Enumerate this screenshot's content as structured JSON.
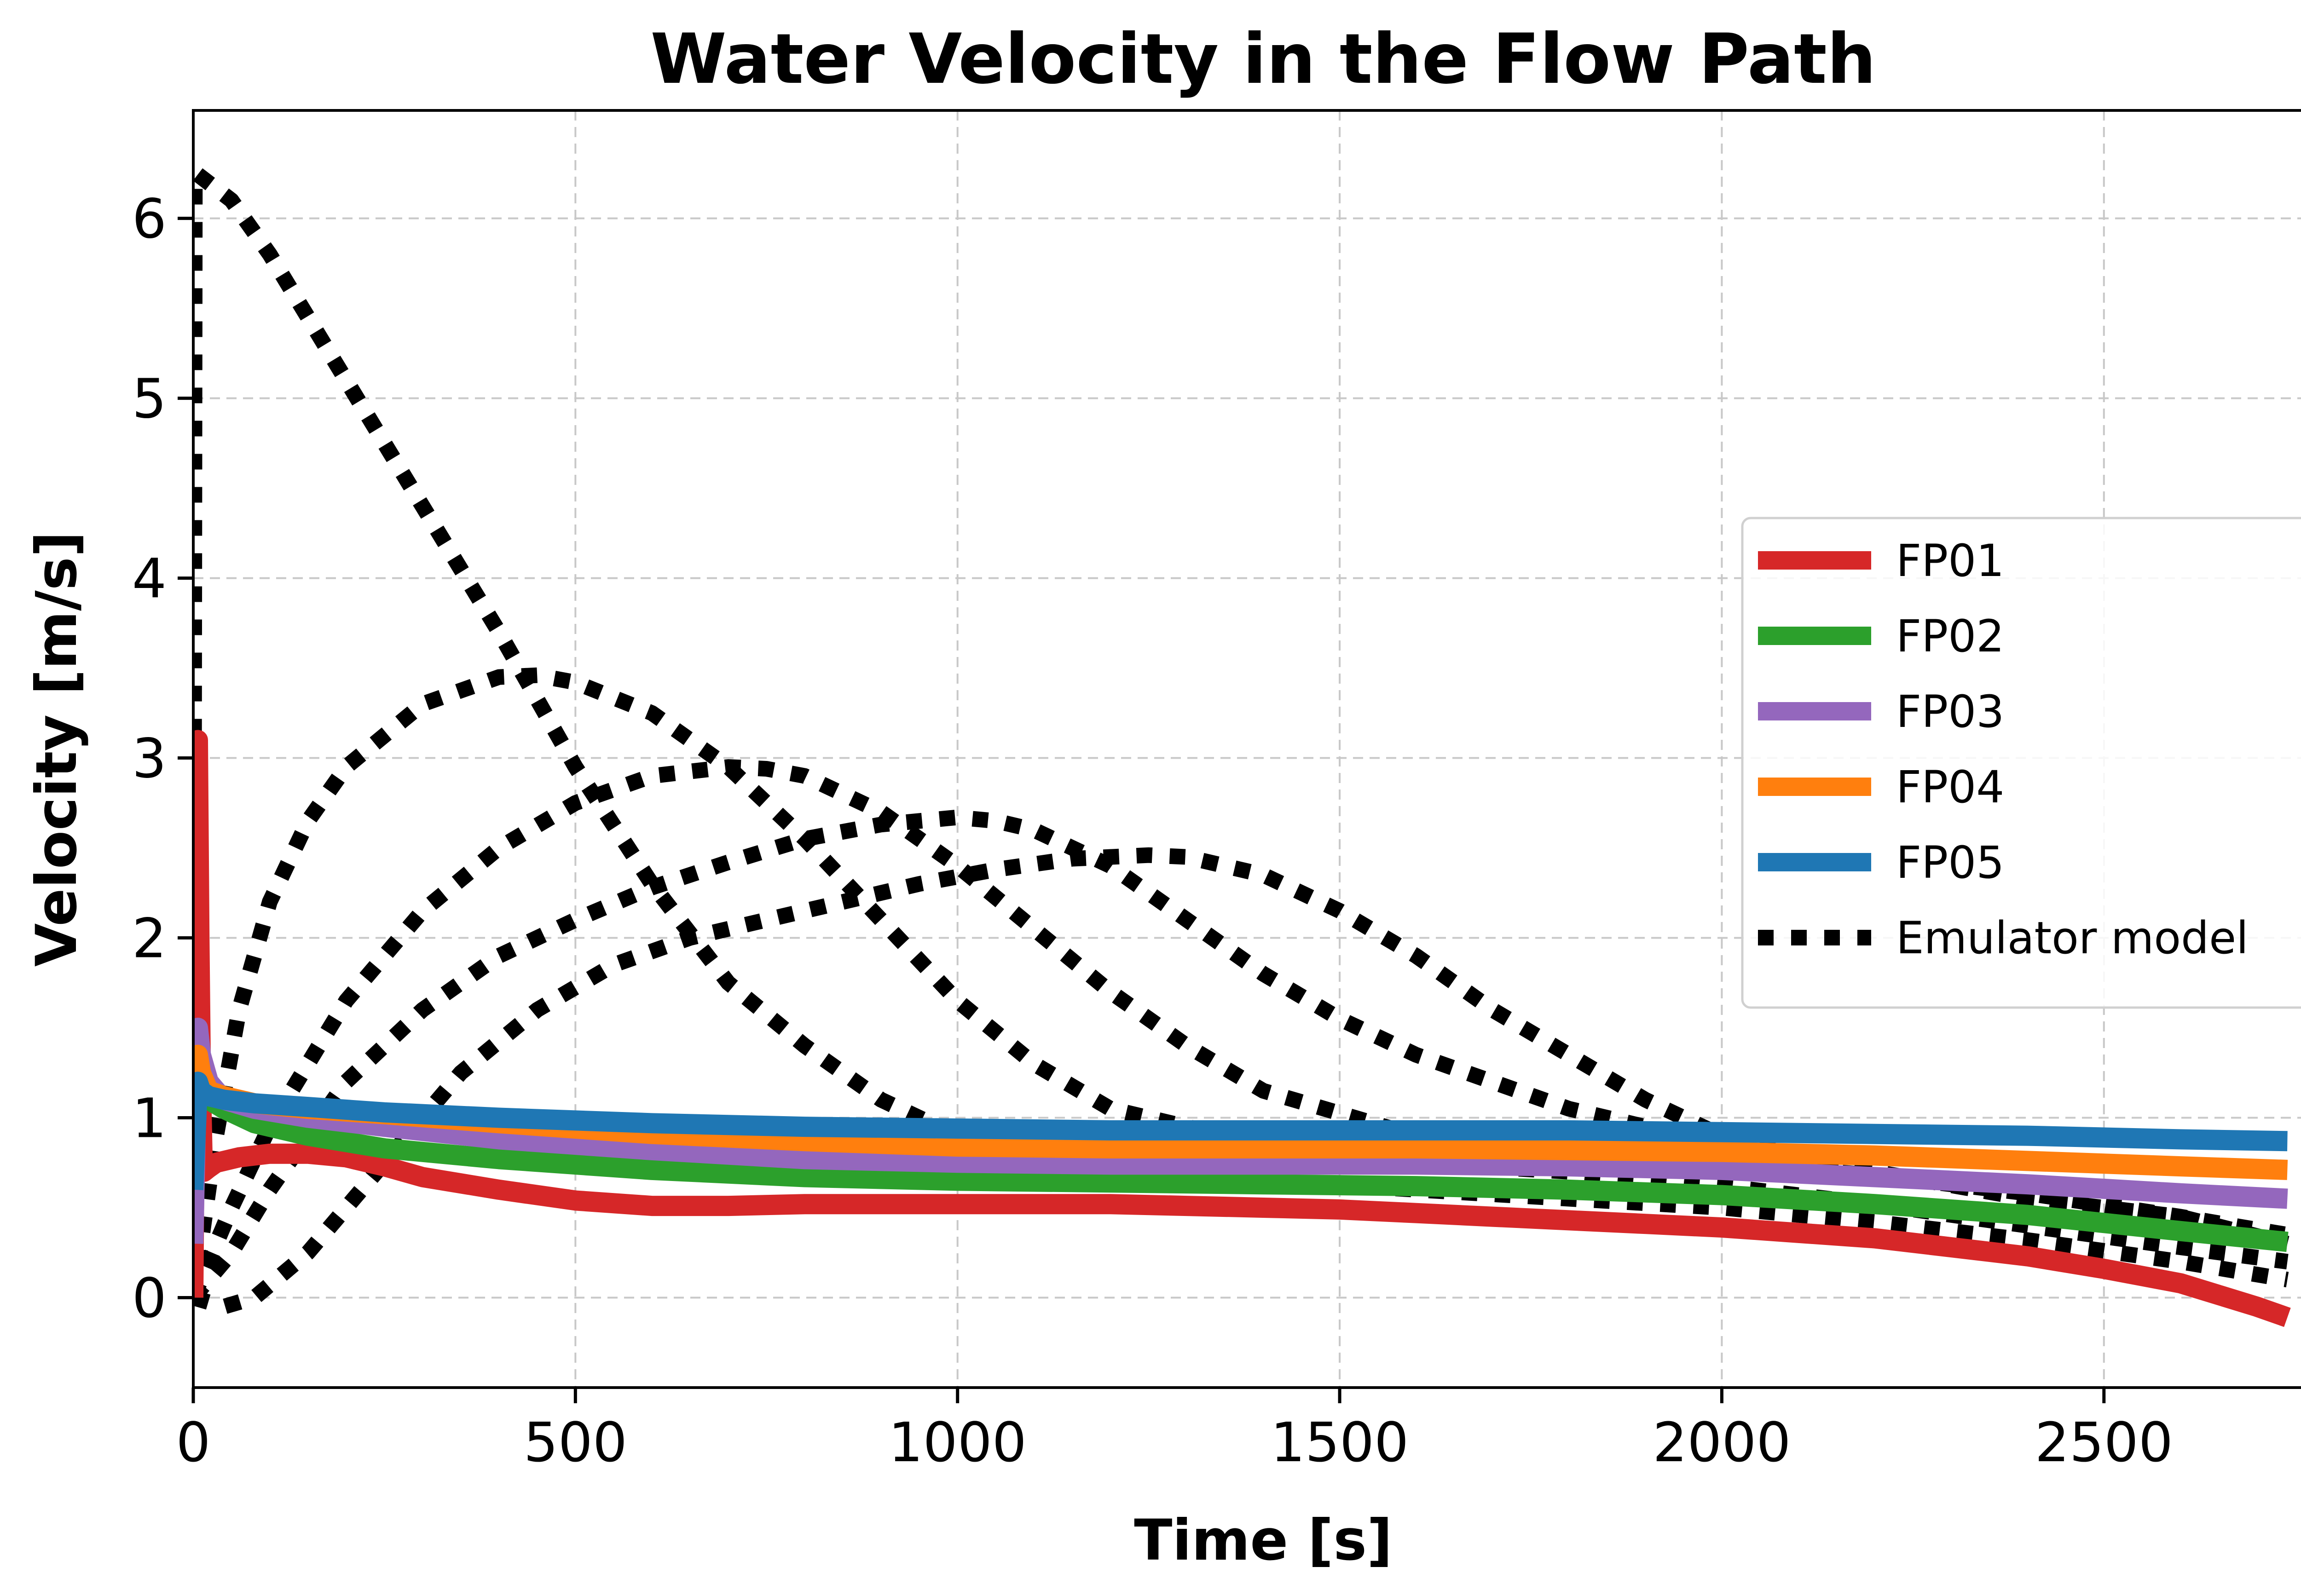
{
  "chart_data": {
    "type": "line",
    "title": "Water Velocity in the Flow Path",
    "xlabel": "Time [s]",
    "ylabel": "Velocity [m/s]",
    "xlim": [
      0,
      2800
    ],
    "ylim": [
      -0.5,
      6.6
    ],
    "xticks": [
      0,
      500,
      1000,
      1500,
      2000,
      2500
    ],
    "yticks": [
      0,
      1,
      2,
      3,
      4,
      5,
      6
    ],
    "grid": true,
    "legend_position": "center-right",
    "series": [
      {
        "name": "FP01",
        "color": "#d62728",
        "style": "solid",
        "x": [
          0,
          6,
          8,
          10,
          12,
          14,
          20,
          30,
          60,
          100,
          150,
          200,
          250,
          300,
          400,
          500,
          600,
          700,
          800,
          900,
          1000,
          1100,
          1200,
          1300,
          1400,
          1500,
          1600,
          1700,
          1800,
          1900,
          2000,
          2100,
          2200,
          2300,
          2400,
          2500,
          2600,
          2700,
          2740
        ],
        "y": [
          0,
          3.1,
          2.0,
          1.2,
          0.8,
          0.7,
          0.72,
          0.75,
          0.78,
          0.8,
          0.8,
          0.78,
          0.73,
          0.67,
          0.6,
          0.54,
          0.51,
          0.51,
          0.52,
          0.52,
          0.52,
          0.52,
          0.52,
          0.51,
          0.5,
          0.49,
          0.47,
          0.45,
          0.43,
          0.41,
          0.39,
          0.36,
          0.33,
          0.28,
          0.23,
          0.16,
          0.08,
          -0.05,
          -0.11
        ]
      },
      {
        "name": "FP02",
        "color": "#2ca02c",
        "style": "solid",
        "x": [
          0,
          6,
          10,
          20,
          40,
          80,
          150,
          250,
          400,
          600,
          800,
          1000,
          1200,
          1400,
          1600,
          1800,
          2000,
          2200,
          2400,
          2600,
          2740
        ],
        "y": [
          0.5,
          1.3,
          1.2,
          1.1,
          1.05,
          0.97,
          0.9,
          0.83,
          0.77,
          0.71,
          0.67,
          0.65,
          0.64,
          0.63,
          0.62,
          0.6,
          0.57,
          0.52,
          0.46,
          0.37,
          0.31
        ]
      },
      {
        "name": "FP03",
        "color": "#9467bd",
        "style": "solid",
        "x": [
          0,
          6,
          10,
          20,
          40,
          80,
          150,
          250,
          400,
          600,
          800,
          1000,
          1200,
          1400,
          1600,
          1800,
          2000,
          2200,
          2400,
          2600,
          2740
        ],
        "y": [
          0.3,
          1.5,
          1.35,
          1.2,
          1.1,
          1.05,
          1.0,
          0.95,
          0.88,
          0.82,
          0.77,
          0.75,
          0.74,
          0.74,
          0.74,
          0.73,
          0.71,
          0.67,
          0.63,
          0.58,
          0.55
        ]
      },
      {
        "name": "FP04",
        "color": "#ff7f0e",
        "style": "solid",
        "x": [
          0,
          6,
          10,
          20,
          40,
          80,
          150,
          250,
          400,
          600,
          800,
          1000,
          1200,
          1400,
          1600,
          1800,
          2000,
          2200,
          2400,
          2600,
          2740
        ],
        "y": [
          0.6,
          1.35,
          1.25,
          1.15,
          1.12,
          1.08,
          1.05,
          1.02,
          0.97,
          0.91,
          0.87,
          0.84,
          0.83,
          0.83,
          0.83,
          0.82,
          0.81,
          0.79,
          0.76,
          0.73,
          0.71
        ]
      },
      {
        "name": "FP05",
        "color": "#1f77b4",
        "style": "solid",
        "x": [
          0,
          6,
          10,
          20,
          40,
          80,
          150,
          250,
          400,
          600,
          800,
          1000,
          1200,
          1400,
          1600,
          1800,
          2000,
          2200,
          2400,
          2600,
          2740
        ],
        "y": [
          0.6,
          1.2,
          1.15,
          1.12,
          1.1,
          1.08,
          1.06,
          1.03,
          1.0,
          0.97,
          0.95,
          0.94,
          0.93,
          0.93,
          0.93,
          0.93,
          0.92,
          0.91,
          0.9,
          0.88,
          0.87
        ]
      },
      {
        "name": "Emulator model",
        "color": "#000000",
        "style": "dotted",
        "x": [
          0,
          2,
          4,
          50,
          100,
          200,
          300,
          400,
          500,
          600,
          700,
          800,
          900,
          1000,
          1100,
          1200,
          1300,
          1400,
          1600,
          1800,
          2000,
          2200,
          2400,
          2600,
          2740
        ],
        "y": [
          0,
          6.2,
          6.25,
          6.1,
          5.8,
          5.1,
          4.4,
          3.7,
          2.95,
          2.3,
          1.75,
          1.4,
          1.1,
          0.9,
          0.8,
          0.72,
          0.68,
          0.65,
          0.6,
          0.55,
          0.5,
          0.42,
          0.32,
          0.2,
          0.1
        ]
      },
      {
        "name": "Emulator model",
        "color": "#000000",
        "style": "dotted",
        "x": [
          0,
          30,
          60,
          100,
          150,
          200,
          300,
          400,
          450,
          500,
          600,
          700,
          800,
          900,
          1000,
          1100,
          1200,
          1400,
          1600,
          1800,
          2000,
          2200,
          2400,
          2600,
          2740
        ],
        "y": [
          0,
          0.9,
          1.6,
          2.2,
          2.65,
          2.95,
          3.3,
          3.45,
          3.46,
          3.42,
          3.25,
          2.95,
          2.55,
          2.1,
          1.65,
          1.3,
          1.05,
          0.85,
          0.75,
          0.7,
          0.62,
          0.52,
          0.4,
          0.28,
          0.2
        ]
      },
      {
        "name": "Emulator model",
        "color": "#000000",
        "style": "dotted",
        "x": [
          0,
          50,
          100,
          200,
          300,
          400,
          500,
          600,
          700,
          750,
          800,
          900,
          1000,
          1100,
          1200,
          1300,
          1400,
          1600,
          1800,
          2000,
          2200,
          2400,
          2600,
          2740
        ],
        "y": [
          0,
          0.5,
          0.95,
          1.65,
          2.15,
          2.5,
          2.75,
          2.9,
          2.95,
          2.94,
          2.9,
          2.7,
          2.4,
          2.05,
          1.7,
          1.4,
          1.15,
          0.9,
          0.8,
          0.75,
          0.68,
          0.58,
          0.45,
          0.35
        ]
      },
      {
        "name": "Emulator model",
        "color": "#000000",
        "style": "dotted",
        "x": [
          0,
          50,
          100,
          200,
          300,
          400,
          500,
          600,
          700,
          800,
          900,
          1000,
          1050,
          1100,
          1200,
          1300,
          1400,
          1500,
          1600,
          1800,
          2000,
          2200,
          2400,
          2600,
          2740
        ],
        "y": [
          0,
          0.25,
          0.6,
          1.2,
          1.6,
          1.9,
          2.1,
          2.28,
          2.42,
          2.55,
          2.63,
          2.67,
          2.65,
          2.6,
          2.4,
          2.1,
          1.8,
          1.55,
          1.35,
          1.05,
          0.85,
          0.7,
          0.55,
          0.4,
          0.3
        ]
      },
      {
        "name": "Emulator model",
        "color": "#000000",
        "style": "dotted",
        "x": [
          0,
          40,
          80,
          150,
          250,
          350,
          450,
          550,
          650,
          750,
          850,
          950,
          1050,
          1150,
          1250,
          1300,
          1400,
          1500,
          1600,
          1700,
          1800,
          1900,
          2000,
          2200,
          2400,
          2600,
          2740
        ],
        "y": [
          0,
          -0.05,
          0,
          0.25,
          0.75,
          1.25,
          1.6,
          1.85,
          2.0,
          2.1,
          2.2,
          2.3,
          2.38,
          2.44,
          2.46,
          2.45,
          2.35,
          2.15,
          1.9,
          1.6,
          1.35,
          1.1,
          0.9,
          0.7,
          0.55,
          0.45,
          0.3
        ]
      }
    ]
  }
}
